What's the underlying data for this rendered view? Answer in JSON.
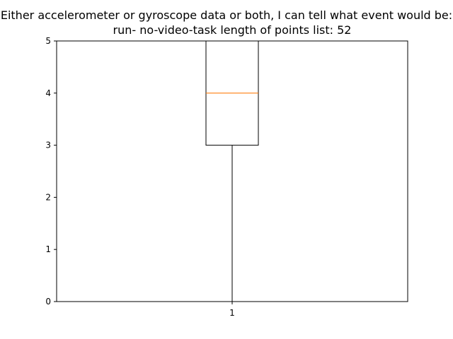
{
  "chart_data": {
    "type": "box",
    "title_line1": "Either accelerometer or gyroscope data or both, I can tell what event would be:",
    "title_line2": "run-    no-video-task    length of points list: 52",
    "categories": [
      "1"
    ],
    "boxes": [
      {
        "category": "1",
        "whisker_low": 0,
        "q1": 3,
        "median": 4,
        "q3": 5,
        "whisker_high": 5
      }
    ],
    "ylim": [
      0,
      5
    ],
    "yticks": [
      "0",
      "1",
      "2",
      "3",
      "4",
      "5"
    ],
    "xlabel": "",
    "ylabel": "",
    "grid": false,
    "colors": {
      "box": "#000000",
      "median": "#ff7f0e",
      "axes": "#000000"
    }
  }
}
